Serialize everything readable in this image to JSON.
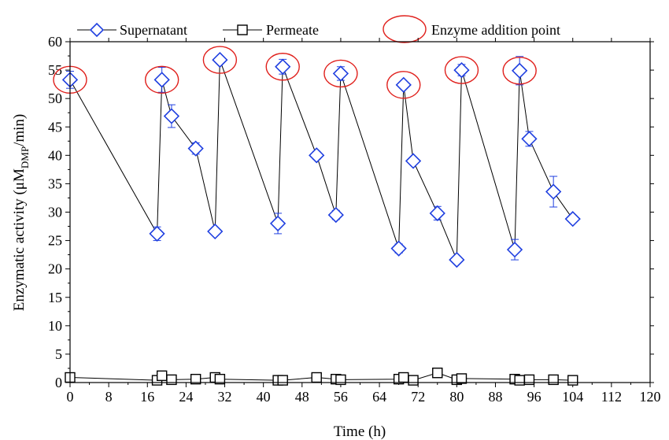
{
  "chart_data": {
    "type": "scatter",
    "xlabel": "Time (h)",
    "ylabel_main": "Enzymatic activity (μM",
    "ylabel_sub": "DMP",
    "ylabel_tail": "/min)",
    "xlim": [
      0,
      120
    ],
    "ylim": [
      0,
      60
    ],
    "xticks": [
      0,
      8,
      16,
      24,
      32,
      40,
      48,
      56,
      64,
      72,
      80,
      88,
      96,
      104,
      112,
      120
    ],
    "yticks": [
      0,
      5,
      10,
      15,
      20,
      25,
      30,
      35,
      40,
      45,
      50,
      55,
      60
    ],
    "grid": false,
    "legend_position": "top",
    "series": [
      {
        "name": "Supernatant",
        "marker": "diamond",
        "color": "#1f3fe0",
        "points": [
          {
            "x": 0,
            "y": 53.3,
            "err": 1.5
          },
          {
            "x": 18,
            "y": 26.2,
            "err": 1.2
          },
          {
            "x": 19,
            "y": 53.3,
            "err": 2.2
          },
          {
            "x": 21,
            "y": 46.9,
            "err": 2.0
          },
          {
            "x": 26,
            "y": 41.2,
            "err": 1.0
          },
          {
            "x": 30,
            "y": 26.6,
            "err": 0.6
          },
          {
            "x": 31,
            "y": 56.8,
            "err": 0.6
          },
          {
            "x": 43,
            "y": 28.0,
            "err": 1.8
          },
          {
            "x": 44,
            "y": 55.6,
            "err": 1.3
          },
          {
            "x": 51,
            "y": 40.0,
            "err": 0.7
          },
          {
            "x": 55,
            "y": 29.5,
            "err": 0.8
          },
          {
            "x": 56,
            "y": 54.4,
            "err": 1.2
          },
          {
            "x": 68,
            "y": 23.6,
            "err": 0.8
          },
          {
            "x": 69,
            "y": 52.4,
            "err": 0.6
          },
          {
            "x": 71,
            "y": 39.0,
            "err": 0.5
          },
          {
            "x": 76,
            "y": 29.8,
            "err": 1.2
          },
          {
            "x": 80,
            "y": 21.6,
            "err": 0.6
          },
          {
            "x": 81,
            "y": 55.0,
            "err": 1.0
          },
          {
            "x": 92,
            "y": 23.4,
            "err": 1.8
          },
          {
            "x": 93,
            "y": 54.9,
            "err": 2.5
          },
          {
            "x": 95,
            "y": 42.9,
            "err": 1.3
          },
          {
            "x": 100,
            "y": 33.6,
            "err": 2.7
          },
          {
            "x": 104,
            "y": 28.8,
            "err": 0.5
          }
        ]
      },
      {
        "name": "Permeate",
        "marker": "square",
        "color": "#000000",
        "points": [
          {
            "x": 0,
            "y": 0.9
          },
          {
            "x": 18,
            "y": 0.4
          },
          {
            "x": 19,
            "y": 1.2
          },
          {
            "x": 21,
            "y": 0.5
          },
          {
            "x": 26,
            "y": 0.6
          },
          {
            "x": 30,
            "y": 0.9
          },
          {
            "x": 31,
            "y": 0.6
          },
          {
            "x": 43,
            "y": 0.4
          },
          {
            "x": 44,
            "y": 0.4
          },
          {
            "x": 51,
            "y": 0.9
          },
          {
            "x": 55,
            "y": 0.6
          },
          {
            "x": 56,
            "y": 0.5
          },
          {
            "x": 68,
            "y": 0.6
          },
          {
            "x": 69,
            "y": 0.9
          },
          {
            "x": 71,
            "y": 0.4
          },
          {
            "x": 76,
            "y": 1.7
          },
          {
            "x": 80,
            "y": 0.5
          },
          {
            "x": 81,
            "y": 0.7
          },
          {
            "x": 92,
            "y": 0.6
          },
          {
            "x": 93,
            "y": 0.4
          },
          {
            "x": 95,
            "y": 0.5
          },
          {
            "x": 100,
            "y": 0.5
          },
          {
            "x": 104,
            "y": 0.4
          }
        ]
      }
    ],
    "annotations": {
      "name": "Enzyme addition point",
      "marker": "ellipse",
      "color": "#e0201c",
      "points": [
        {
          "x": 0,
          "y": 53.3
        },
        {
          "x": 19,
          "y": 53.3
        },
        {
          "x": 31,
          "y": 56.8
        },
        {
          "x": 44,
          "y": 55.6
        },
        {
          "x": 56,
          "y": 54.4
        },
        {
          "x": 69,
          "y": 52.4
        },
        {
          "x": 81,
          "y": 55.0
        },
        {
          "x": 93,
          "y": 54.9
        }
      ]
    }
  }
}
